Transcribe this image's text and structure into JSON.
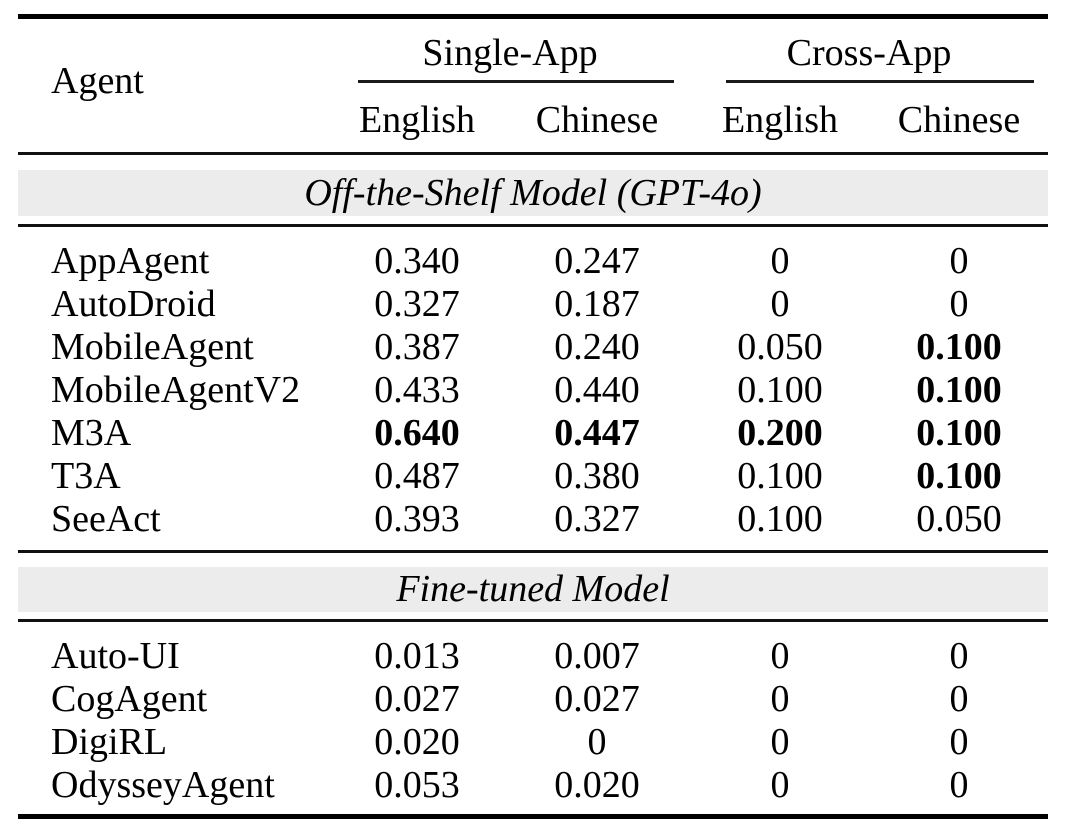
{
  "table": {
    "header": {
      "agent": "Agent",
      "groups": [
        {
          "label": "Single-App",
          "subs": [
            "English",
            "Chinese"
          ]
        },
        {
          "label": "Cross-App",
          "subs": [
            "English",
            "Chinese"
          ]
        }
      ]
    },
    "sections": [
      {
        "title": "Off-the-Shelf Model (GPT-4o)",
        "rows": [
          {
            "agent": "AppAgent",
            "values": [
              "0.340",
              "0.247",
              "0",
              "0"
            ],
            "bold": [
              false,
              false,
              false,
              false
            ]
          },
          {
            "agent": "AutoDroid",
            "values": [
              "0.327",
              "0.187",
              "0",
              "0"
            ],
            "bold": [
              false,
              false,
              false,
              false
            ]
          },
          {
            "agent": "MobileAgent",
            "values": [
              "0.387",
              "0.240",
              "0.050",
              "0.100"
            ],
            "bold": [
              false,
              false,
              false,
              true
            ]
          },
          {
            "agent": "MobileAgentV2",
            "values": [
              "0.433",
              "0.440",
              "0.100",
              "0.100"
            ],
            "bold": [
              false,
              false,
              false,
              true
            ]
          },
          {
            "agent": "M3A",
            "values": [
              "0.640",
              "0.447",
              "0.200",
              "0.100"
            ],
            "bold": [
              true,
              true,
              true,
              true
            ]
          },
          {
            "agent": "T3A",
            "values": [
              "0.487",
              "0.380",
              "0.100",
              "0.100"
            ],
            "bold": [
              false,
              false,
              false,
              true
            ]
          },
          {
            "agent": "SeeAct",
            "values": [
              "0.393",
              "0.327",
              "0.100",
              "0.050"
            ],
            "bold": [
              false,
              false,
              false,
              false
            ]
          }
        ]
      },
      {
        "title": "Fine-tuned Model",
        "rows": [
          {
            "agent": "Auto-UI",
            "values": [
              "0.013",
              "0.007",
              "0",
              "0"
            ],
            "bold": [
              false,
              false,
              false,
              false
            ]
          },
          {
            "agent": "CogAgent",
            "values": [
              "0.027",
              "0.027",
              "0",
              "0"
            ],
            "bold": [
              false,
              false,
              false,
              false
            ]
          },
          {
            "agent": "DigiRL",
            "values": [
              "0.020",
              "0",
              "0",
              "0"
            ],
            "bold": [
              false,
              false,
              false,
              false
            ]
          },
          {
            "agent": "OdysseyAgent",
            "values": [
              "0.053",
              "0.020",
              "0",
              "0"
            ],
            "bold": [
              false,
              false,
              false,
              false
            ]
          }
        ]
      }
    ]
  },
  "colors": {
    "band_background": "#ececec",
    "rule": "#000000",
    "text": "#000000"
  }
}
